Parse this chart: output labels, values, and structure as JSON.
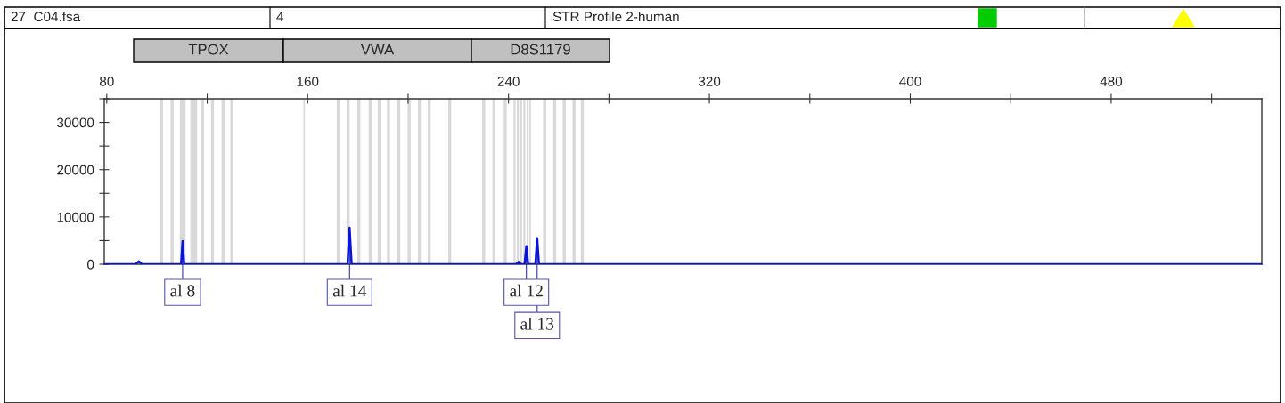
{
  "chart_data": {
    "type": "line",
    "annotations": [
      "27  C04.fsa",
      "4",
      "STR Profile 2-human",
      "TPOX",
      "VWA",
      "D8S1179",
      {
        "text": "al 8",
        "x": 110.2,
        "y": 4900
      },
      {
        "text": "al 14",
        "x": 176.7,
        "y": 7700
      },
      {
        "text": "al 12",
        "x": 247.1,
        "y": 3800
      },
      {
        "text": "al 13",
        "x": 251.4,
        "y": 5500
      }
    ],
    "series": [
      {
        "color": "#0a14d8",
        "x": [
          79,
          91.5,
          92.8,
          94,
          109.6,
          110.2,
          110.8,
          175.9,
          176.7,
          177.5,
          243,
          244,
          245,
          246.4,
          247.1,
          247.8,
          250.7,
          251.4,
          252.1,
          540
        ],
        "values": [
          0,
          0,
          600,
          0,
          0,
          4900,
          0,
          0,
          7700,
          0,
          0,
          500,
          0,
          0,
          3800,
          0,
          0,
          5500,
          0,
          0
        ]
      }
    ],
    "bands": [
      {
        "axis": "x",
        "from": 101.2,
        "to": 102.4,
        "color": "#d9d9d9"
      },
      {
        "axis": "x",
        "from": 105.4,
        "to": 106.6,
        "color": "#d9d9d9"
      },
      {
        "axis": "x",
        "from": 109.1,
        "to": 111.4,
        "color": "#d9d9d9"
      },
      {
        "axis": "x",
        "from": 113.3,
        "to": 116.0,
        "color": "#d9d9d9"
      },
      {
        "axis": "x",
        "from": 117.5,
        "to": 118.7,
        "color": "#d9d9d9"
      },
      {
        "axis": "x",
        "from": 121.5,
        "to": 122.7,
        "color": "#d9d9d9"
      },
      {
        "axis": "x",
        "from": 125.7,
        "to": 126.9,
        "color": "#d9d9d9"
      },
      {
        "axis": "x",
        "from": 129.2,
        "to": 130.4,
        "color": "#d9d9d9"
      },
      {
        "axis": "x",
        "from": 158.3,
        "to": 158.9,
        "color": "#d9d9d9"
      },
      {
        "axis": "x",
        "from": 171.6,
        "to": 172.8,
        "color": "#d9d9d9"
      },
      {
        "axis": "x",
        "from": 175.5,
        "to": 176.7,
        "color": "#d9d9d9"
      },
      {
        "axis": "x",
        "from": 179.8,
        "to": 181.0,
        "color": "#d9d9d9"
      },
      {
        "axis": "x",
        "from": 184.3,
        "to": 185.5,
        "color": "#d9d9d9"
      },
      {
        "axis": "x",
        "from": 187.9,
        "to": 189.1,
        "color": "#d9d9d9"
      },
      {
        "axis": "x",
        "from": 191.6,
        "to": 192.8,
        "color": "#d9d9d9"
      },
      {
        "axis": "x",
        "from": 195.7,
        "to": 196.9,
        "color": "#d9d9d9"
      },
      {
        "axis": "x",
        "from": 199.8,
        "to": 201.0,
        "color": "#d9d9d9"
      },
      {
        "axis": "x",
        "from": 203.9,
        "to": 205.1,
        "color": "#d9d9d9"
      },
      {
        "axis": "x",
        "from": 207.8,
        "to": 209.0,
        "color": "#d9d9d9"
      },
      {
        "axis": "x",
        "from": 216.0,
        "to": 217.2,
        "color": "#d9d9d9"
      },
      {
        "axis": "x",
        "from": 229.5,
        "to": 230.7,
        "color": "#d9d9d9"
      },
      {
        "axis": "x",
        "from": 233.6,
        "to": 234.8,
        "color": "#d9d9d9"
      },
      {
        "axis": "x",
        "from": 238.1,
        "to": 239.3,
        "color": "#d9d9d9"
      },
      {
        "axis": "x",
        "from": 242.0,
        "to": 242.8,
        "color": "#d9d9d9"
      },
      {
        "axis": "x",
        "from": 243.3,
        "to": 244.1,
        "color": "#d9d9d9"
      },
      {
        "axis": "x",
        "from": 244.6,
        "to": 245.4,
        "color": "#d9d9d9"
      },
      {
        "axis": "x",
        "from": 245.9,
        "to": 246.7,
        "color": "#d9d9d9"
      },
      {
        "axis": "x",
        "from": 247.2,
        "to": 248.0,
        "color": "#d9d9d9"
      },
      {
        "axis": "x",
        "from": 248.3,
        "to": 248.9,
        "color": "#d9d9d9"
      },
      {
        "axis": "x",
        "from": 253.8,
        "to": 255.0,
        "color": "#d9d9d9"
      },
      {
        "axis": "x",
        "from": 257.8,
        "to": 259.0,
        "color": "#d9d9d9"
      },
      {
        "axis": "x",
        "from": 261.6,
        "to": 262.8,
        "color": "#d9d9d9"
      },
      {
        "axis": "x",
        "from": 265.5,
        "to": 266.7,
        "color": "#d9d9d9"
      },
      {
        "axis": "x",
        "from": 268.8,
        "to": 270.0,
        "color": "#d9d9d9"
      }
    ],
    "xlim": [
      79,
      540
    ],
    "ylim": [
      0,
      35000
    ],
    "xticks": [
      80,
      {
        "value": 120,
        "label": null
      },
      160,
      {
        "value": 200,
        "label": null
      },
      240,
      {
        "value": 280,
        "label": null
      },
      320,
      {
        "value": 360,
        "label": null
      },
      400,
      {
        "value": 440,
        "label": null
      },
      480,
      {
        "value": 520,
        "label": null
      }
    ],
    "yticks": [
      0,
      {
        "value": 5000,
        "label": null
      },
      10000,
      {
        "value": 15000,
        "label": null
      },
      20000,
      {
        "value": 25000,
        "label": null
      },
      30000,
      {
        "value": 35000,
        "label": null
      }
    ],
    "grid": false,
    "legend": false
  }
}
